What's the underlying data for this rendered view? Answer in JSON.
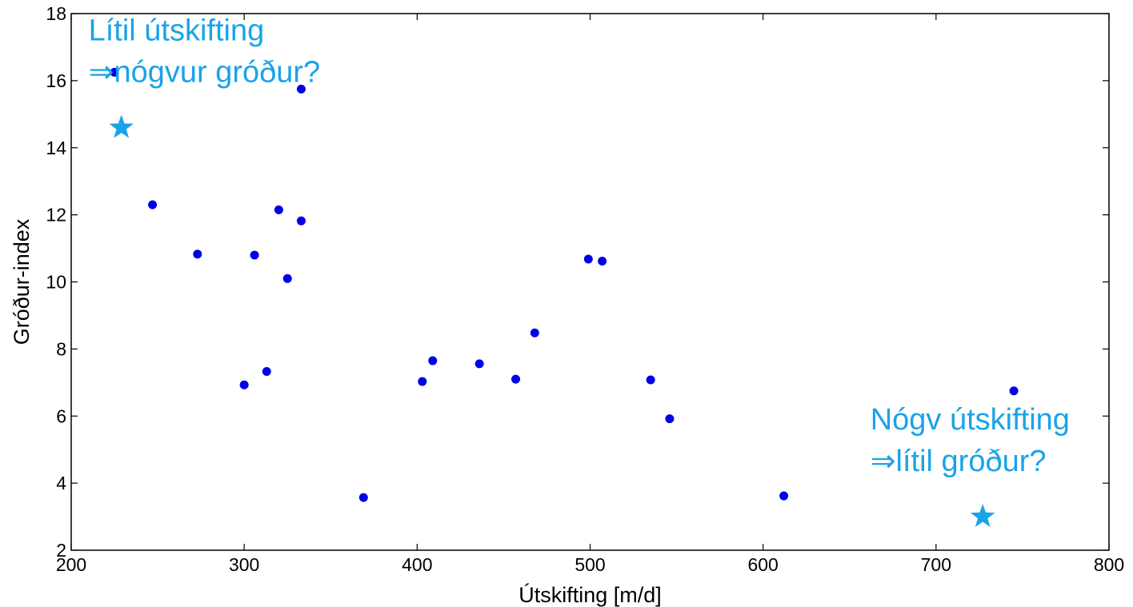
{
  "chart_data": {
    "type": "scatter",
    "title": "",
    "xlabel": "Útskifting [m/d]",
    "ylabel": "Gróður-index",
    "xlim": [
      200,
      800
    ],
    "ylim": [
      2,
      18
    ],
    "xticks": [
      200,
      300,
      400,
      500,
      600,
      700,
      800
    ],
    "yticks": [
      2,
      4,
      6,
      8,
      10,
      12,
      14,
      16,
      18
    ],
    "grid": false,
    "legend": "none",
    "point_color": "#0000e6",
    "accent_color": "#1aa3e8",
    "points": [
      {
        "x": 225,
        "y": 16.25
      },
      {
        "x": 333,
        "y": 15.75
      },
      {
        "x": 247,
        "y": 12.3
      },
      {
        "x": 320,
        "y": 12.15
      },
      {
        "x": 333,
        "y": 11.82
      },
      {
        "x": 273,
        "y": 10.83
      },
      {
        "x": 306,
        "y": 10.8
      },
      {
        "x": 325,
        "y": 10.1
      },
      {
        "x": 300,
        "y": 6.93
      },
      {
        "x": 313,
        "y": 7.33
      },
      {
        "x": 369,
        "y": 3.57
      },
      {
        "x": 403,
        "y": 7.03
      },
      {
        "x": 409,
        "y": 7.65
      },
      {
        "x": 436,
        "y": 7.56
      },
      {
        "x": 457,
        "y": 7.1
      },
      {
        "x": 468,
        "y": 8.48
      },
      {
        "x": 499,
        "y": 10.68
      },
      {
        "x": 507,
        "y": 10.62
      },
      {
        "x": 535,
        "y": 7.08
      },
      {
        "x": 546,
        "y": 5.92
      },
      {
        "x": 612,
        "y": 3.62
      },
      {
        "x": 745,
        "y": 6.75
      }
    ],
    "annotations": [
      {
        "lines": [
          "Lítil útskifting",
          "⇒nógvur gróður?"
        ],
        "text_x": 210,
        "text_y": 17.2,
        "star": {
          "x": 229,
          "y": 14.6
        }
      },
      {
        "lines": [
          "Nógv útskifting",
          "⇒lítil gróður?"
        ],
        "text_x": 662,
        "text_y": 5.6,
        "star": {
          "x": 727,
          "y": 3.0
        }
      }
    ]
  }
}
